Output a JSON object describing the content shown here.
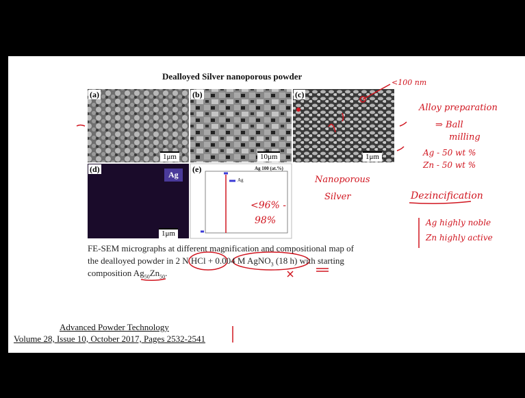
{
  "figure": {
    "title": "Dealloyed Silver nanoporous powder",
    "panels": [
      {
        "label": "(a)",
        "scale": "1μm"
      },
      {
        "label": "(b)",
        "scale": "10μm"
      },
      {
        "label": "(c)",
        "scale": "1μm"
      },
      {
        "label": "(d)",
        "scale": "1μm",
        "element": "Ag"
      },
      {
        "label": "(e)",
        "title": "Ag 100 (at.%)",
        "legend": "Ag"
      }
    ]
  },
  "caption": [
    "FE-SEM micrographs at different magnification and compositional map of",
    "the dealloyed powder in 2 N HCl + 0.004 M AgNO",
    "3",
    " (18 h) with starting",
    "composition Ag",
    "50",
    "Zn",
    "50",
    "."
  ],
  "reference": {
    "journal": "Advanced Powder Technology",
    "details": "Volume 28, Issue 10, October 2017, Pages 2532-2541"
  },
  "notes": [
    "<100 nm",
    "Alloy preparation",
    "⇒ Ball",
    "milling",
    "Ag - 50 wt %",
    "Zn - 50 wt %",
    "Dezincification",
    "Ag highly noble",
    "Zn highly active",
    "Nanoporous",
    "Silver",
    "<96% -",
    "98%"
  ]
}
